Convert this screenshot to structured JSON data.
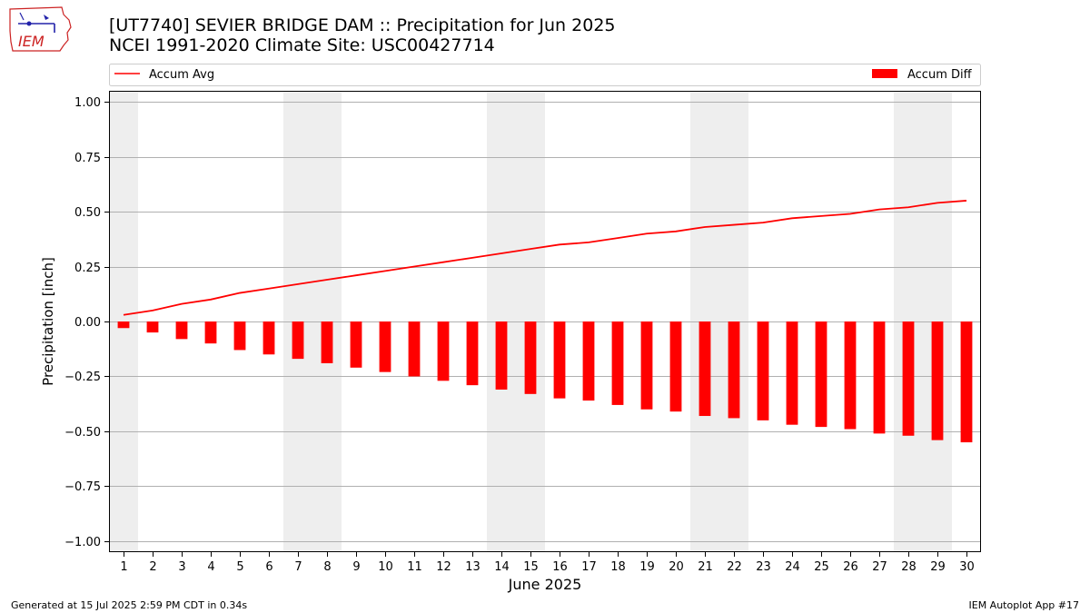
{
  "header": {
    "title_line1": "[UT7740] SEVIER BRIDGE DAM :: Precipitation for Jun 2025",
    "title_line2": "NCEI 1991-2020 Climate Site: USC00427714"
  },
  "logo": {
    "text": "IEM"
  },
  "footer": {
    "generated": "Generated at 15 Jul 2025 2:59 PM CDT in 0.34s",
    "app": "IEM Autoplot App #17"
  },
  "colors": {
    "accent": "#ff0000",
    "weekend_band": "#eeeeee",
    "grid": "#b0b0b0"
  },
  "chart_data": {
    "type": "bar",
    "title": "[UT7740] SEVIER BRIDGE DAM :: Precipitation for Jun 2025",
    "subtitle": "NCEI 1991-2020 Climate Site: USC00427714",
    "xlabel": "June 2025",
    "ylabel": "Precipitation [inch]",
    "ylim": [
      -1.05,
      1.05
    ],
    "xlim": [
      0.5,
      30.5
    ],
    "yticks": [
      -1.0,
      -0.75,
      -0.5,
      -0.25,
      0.0,
      0.25,
      0.5,
      0.75,
      1.0
    ],
    "ytick_labels": [
      "−1.00",
      "−0.75",
      "−0.50",
      "−0.25",
      "0.00",
      "0.25",
      "0.50",
      "0.75",
      "1.00"
    ],
    "x": [
      1,
      2,
      3,
      4,
      5,
      6,
      7,
      8,
      9,
      10,
      11,
      12,
      13,
      14,
      15,
      16,
      17,
      18,
      19,
      20,
      21,
      22,
      23,
      24,
      25,
      26,
      27,
      28,
      29,
      30
    ],
    "grid": true,
    "legend": [
      "top-left",
      "top-right"
    ],
    "weekend_days": [
      1,
      7,
      8,
      14,
      15,
      21,
      22,
      28,
      29
    ],
    "series": [
      {
        "name": "Accum Avg",
        "type": "line",
        "color": "#ff0000",
        "values": [
          0.03,
          0.05,
          0.08,
          0.1,
          0.13,
          0.15,
          0.17,
          0.19,
          0.21,
          0.23,
          0.25,
          0.27,
          0.29,
          0.31,
          0.33,
          0.35,
          0.36,
          0.38,
          0.4,
          0.41,
          0.43,
          0.44,
          0.45,
          0.47,
          0.48,
          0.49,
          0.51,
          0.52,
          0.54,
          0.55
        ]
      },
      {
        "name": "Accum Diff",
        "type": "bar",
        "color": "#ff0000",
        "values": [
          -0.03,
          -0.05,
          -0.08,
          -0.1,
          -0.13,
          -0.15,
          -0.17,
          -0.19,
          -0.21,
          -0.23,
          -0.25,
          -0.27,
          -0.29,
          -0.31,
          -0.33,
          -0.35,
          -0.36,
          -0.38,
          -0.4,
          -0.41,
          -0.43,
          -0.44,
          -0.45,
          -0.47,
          -0.48,
          -0.49,
          -0.51,
          -0.52,
          -0.54,
          -0.55
        ]
      }
    ]
  }
}
